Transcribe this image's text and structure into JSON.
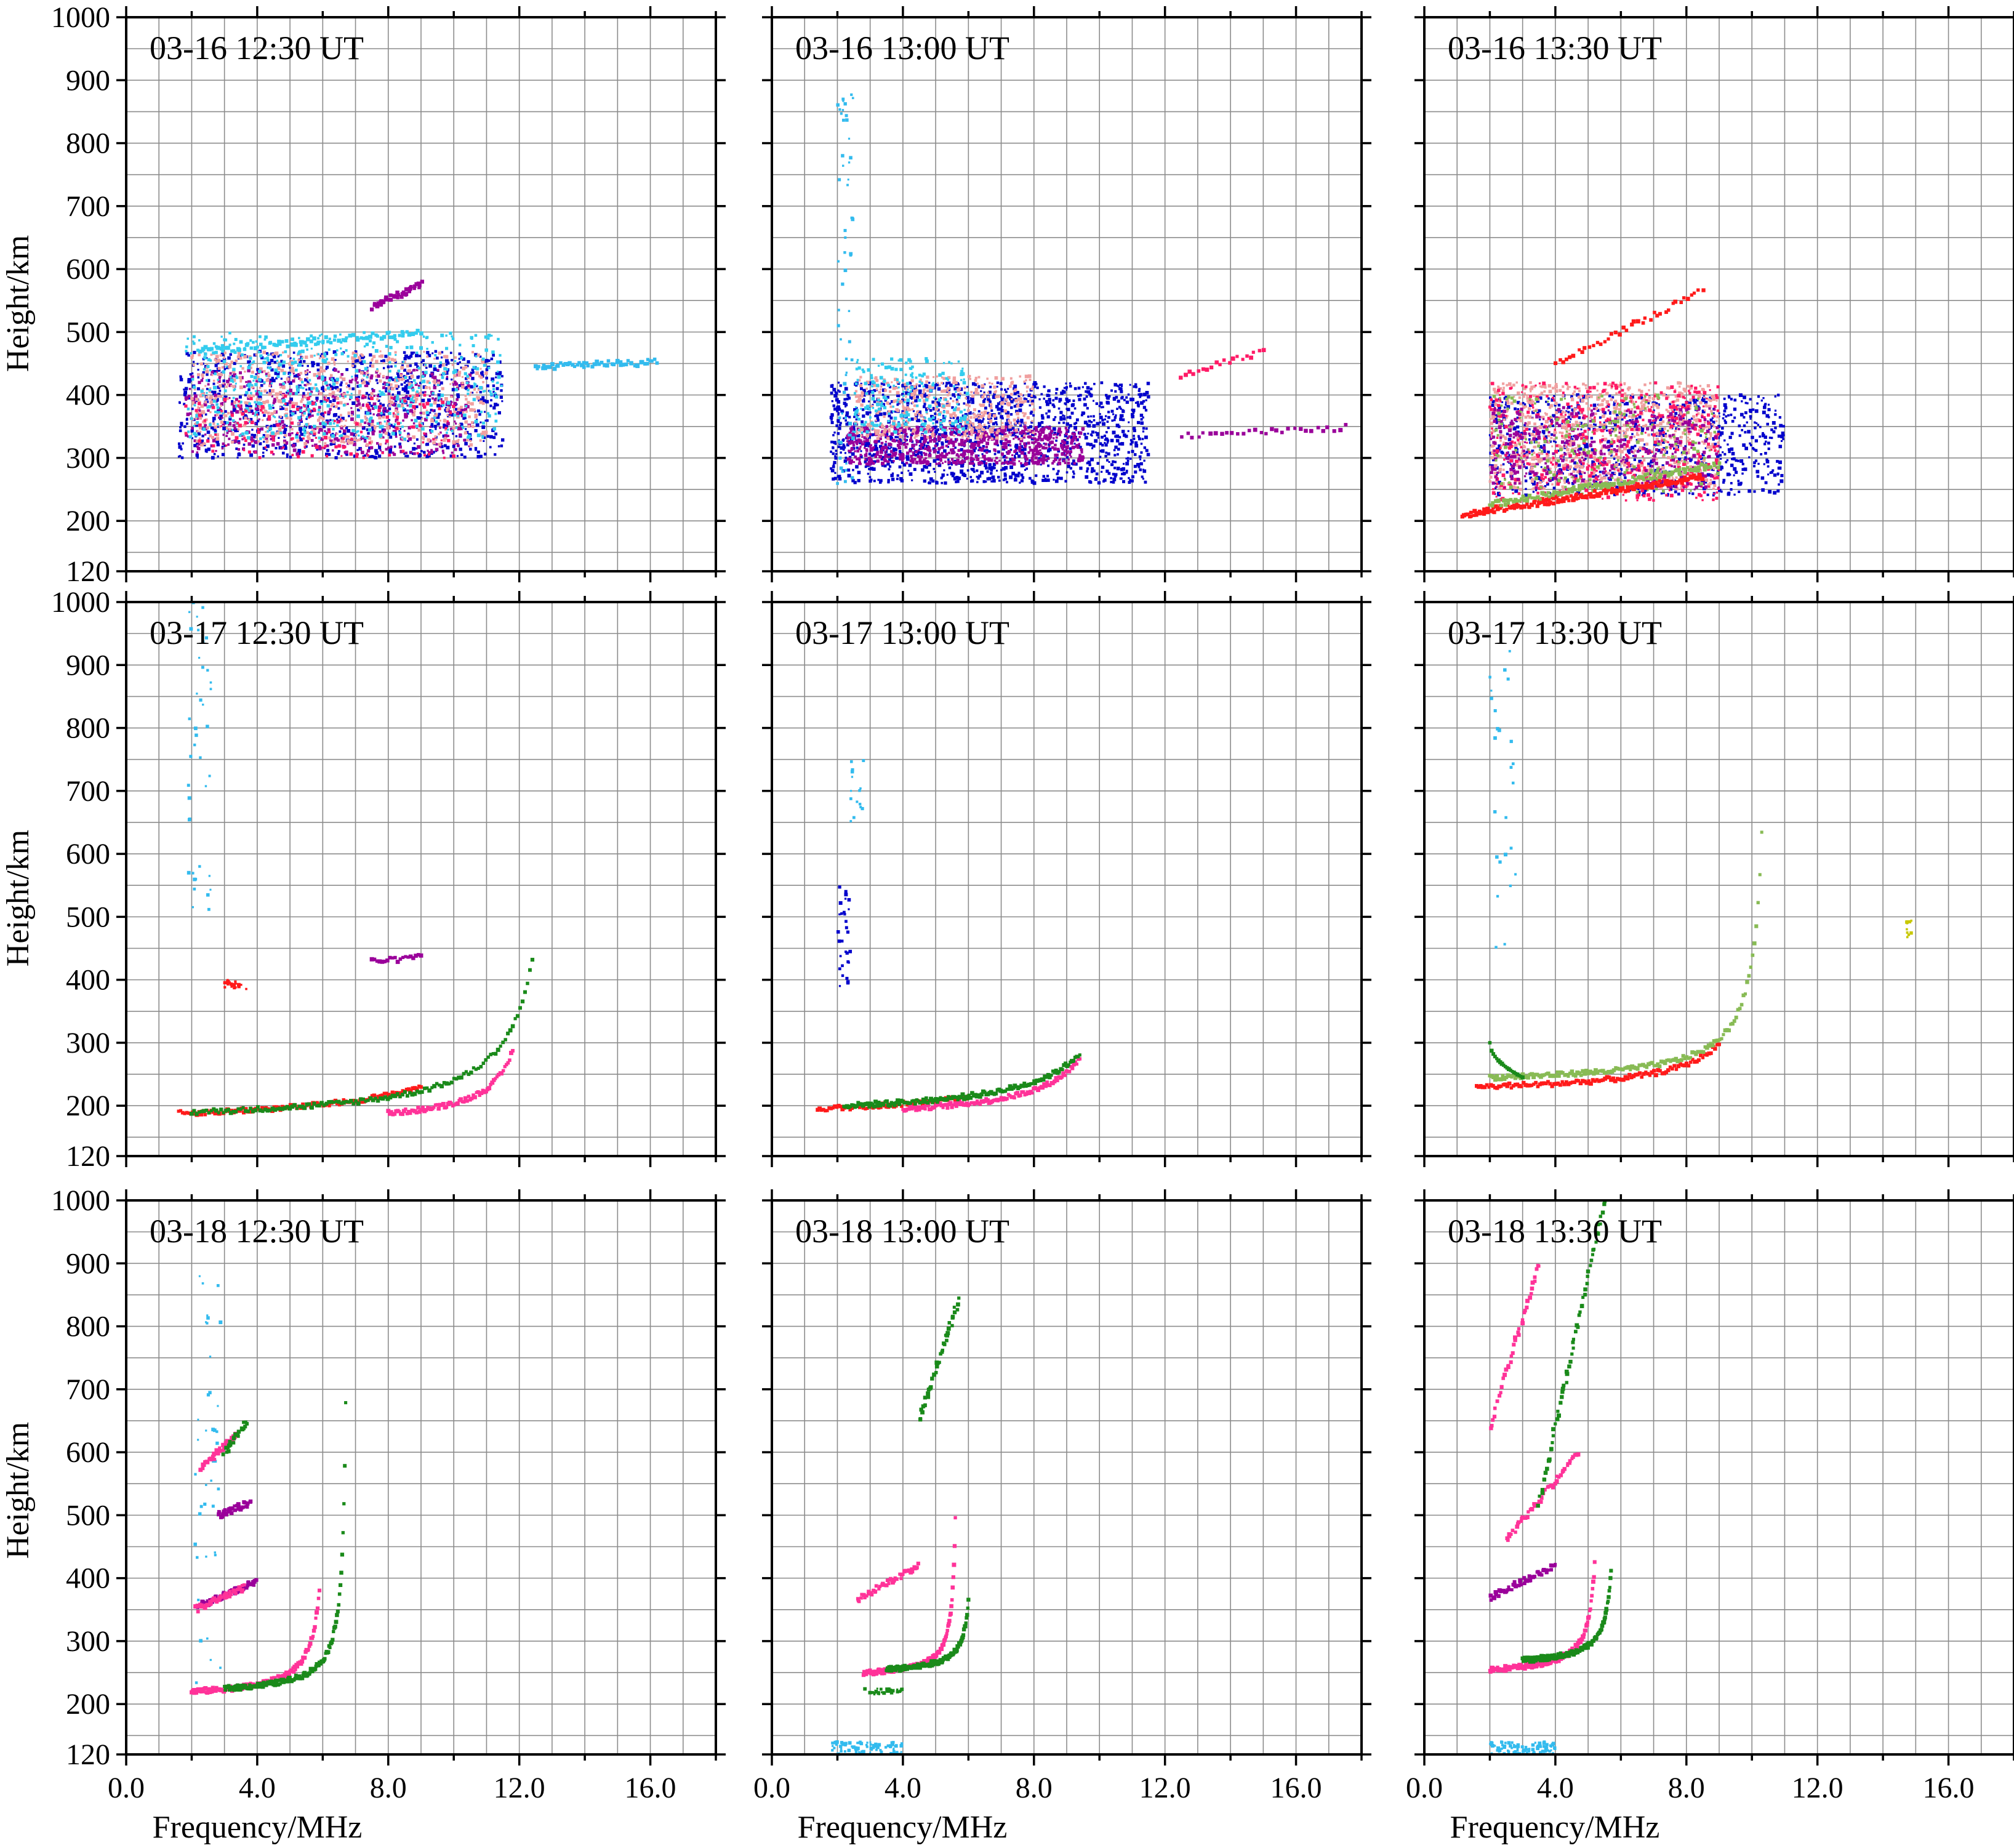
{
  "figure": {
    "xlabel": "Frequency/MHz",
    "ylabel": "Height/km"
  },
  "chart_data": [
    {
      "type": "scatter",
      "title": "03-16 12:30 UT",
      "xlabel": "Frequency/MHz",
      "ylabel": "Height/km",
      "xlim": [
        0,
        18
      ],
      "ylim": [
        120,
        1000
      ],
      "xticks": [
        "0.0",
        "4.0",
        "8.0",
        "12.0",
        "16.0"
      ],
      "yticks": [
        "120",
        "200",
        "300",
        "400",
        "500",
        "600",
        "700",
        "800",
        "900",
        "1000"
      ],
      "grid": true,
      "clusters": [
        {
          "color": "#0000cc",
          "x": [
            1.6,
            11.5
          ],
          "y": [
            300,
            470
          ],
          "count": 900
        },
        {
          "color": "#9a009a",
          "x": [
            1.8,
            10.5
          ],
          "y": [
            305,
            440
          ],
          "count": 500
        },
        {
          "color": "#f0a0a0",
          "x": [
            2.0,
            11.0
          ],
          "y": [
            320,
            470
          ],
          "count": 600
        },
        {
          "color": "#33ccee",
          "x": [
            1.8,
            11.5
          ],
          "y": [
            330,
            500
          ],
          "count": 500
        },
        {
          "color": "#ff1a66",
          "x": [
            1.8,
            10.0
          ],
          "y": [
            300,
            400
          ],
          "count": 150
        }
      ],
      "curves": [
        {
          "color": "#33bbee",
          "x": [
            12.5,
            16.2
          ],
          "y": [
            445,
            452
          ],
          "count": 60
        },
        {
          "color": "#9a009a",
          "x": [
            7.5,
            9.0
          ],
          "y": [
            540,
            575
          ],
          "count": 40
        },
        {
          "color": "#33ccee",
          "x": [
            2.2,
            9.0
          ],
          "y": [
            470,
            500
          ],
          "count": 80
        }
      ]
    },
    {
      "type": "scatter",
      "title": "03-16 13:00 UT",
      "xlabel": "Frequency/MHz",
      "ylabel": "Height/km",
      "xlim": [
        0,
        18
      ],
      "ylim": [
        120,
        1000
      ],
      "xticks": [
        "0.0",
        "4.0",
        "8.0",
        "12.0",
        "16.0"
      ],
      "yticks": [
        "120",
        "200",
        "300",
        "400",
        "500",
        "600",
        "700",
        "800",
        "900",
        "1000"
      ],
      "grid": true,
      "clusters": [
        {
          "color": "#0000cc",
          "x": [
            1.8,
            11.5
          ],
          "y": [
            260,
            420
          ],
          "count": 1400
        },
        {
          "color": "#9a009a",
          "x": [
            2.3,
            9.5
          ],
          "y": [
            290,
            350
          ],
          "count": 700
        },
        {
          "color": "#f0a0a0",
          "x": [
            2.5,
            8.0
          ],
          "y": [
            330,
            430
          ],
          "count": 400
        },
        {
          "color": "#33ccee",
          "x": [
            2.5,
            6.0
          ],
          "y": [
            340,
            460
          ],
          "count": 200
        },
        {
          "color": "#33bbee",
          "x": [
            2.0,
            2.5
          ],
          "y": [
            250,
            880
          ],
          "count": 60
        }
      ],
      "curves": [
        {
          "color": "#ff1a66",
          "x": [
            12.5,
            15.0
          ],
          "y": [
            430,
            470
          ],
          "count": 20
        },
        {
          "color": "#9a009a",
          "x": [
            12.5,
            17.5
          ],
          "y": [
            335,
            348
          ],
          "count": 30
        }
      ]
    },
    {
      "type": "scatter",
      "title": "03-16 13:30 UT",
      "xlabel": "Frequency/MHz",
      "ylabel": "Height/km",
      "xlim": [
        0,
        18
      ],
      "ylim": [
        120,
        1000
      ],
      "xticks": [
        "0.0",
        "4.0",
        "8.0",
        "12.0",
        "16.0"
      ],
      "yticks": [
        "120",
        "200",
        "300",
        "400",
        "500",
        "600",
        "700",
        "800",
        "900",
        "1000"
      ],
      "grid": true,
      "clusters": [
        {
          "color": "#0000cc",
          "x": [
            2.0,
            11.0
          ],
          "y": [
            240,
            400
          ],
          "count": 800
        },
        {
          "color": "#f0a0a0",
          "x": [
            2.0,
            9.0
          ],
          "y": [
            250,
            420
          ],
          "count": 900
        },
        {
          "color": "#ff1a66",
          "x": [
            2.0,
            9.0
          ],
          "y": [
            230,
            420
          ],
          "count": 500
        },
        {
          "color": "#9a009a",
          "x": [
            2.0,
            9.0
          ],
          "y": [
            250,
            380
          ],
          "count": 400
        },
        {
          "color": "#88bb55",
          "x": [
            2.0,
            9.0
          ],
          "y": [
            240,
            400
          ],
          "count": 200
        }
      ],
      "curves": [
        {
          "color": "#ff1a1a",
          "x": [
            1.2,
            8.5
          ],
          "y": [
            210,
            270
          ],
          "count": 200
        },
        {
          "color": "#88bb55",
          "x": [
            2.0,
            9.0
          ],
          "y": [
            225,
            290
          ],
          "count": 120
        },
        {
          "color": "#ff1a1a",
          "x": [
            4.0,
            8.5
          ],
          "y": [
            450,
            565
          ],
          "count": 40
        }
      ]
    },
    {
      "type": "scatter",
      "title": "03-17 12:30 UT",
      "xlabel": "Frequency/MHz",
      "ylabel": "Height/km",
      "xlim": [
        0,
        18
      ],
      "ylim": [
        120,
        1000
      ],
      "xticks": [
        "0.0",
        "4.0",
        "8.0",
        "12.0",
        "16.0"
      ],
      "yticks": [
        "120",
        "200",
        "300",
        "400",
        "500",
        "600",
        "700",
        "800",
        "900",
        "1000"
      ],
      "grid": true,
      "clusters": [
        {
          "color": "#33bbee",
          "x": [
            1.9,
            2.6
          ],
          "y": [
            500,
            1000
          ],
          "count": 40
        },
        {
          "color": "#ff1a1a",
          "x": [
            3.0,
            4.0
          ],
          "y": [
            385,
            400
          ],
          "count": 20
        }
      ],
      "curves": [
        {
          "kind": "trace",
          "color": "#ff1a1a",
          "f0": 1.6,
          "h0": 188,
          "fc": 12.6,
          "k": 60,
          "fend": 9.0,
          "count": 120
        },
        {
          "kind": "trace",
          "color": "#ff3399",
          "f0": 8.0,
          "h0": 188,
          "fc": 12.6,
          "k": 60,
          "fend": 11.8,
          "count": 80
        },
        {
          "kind": "trace",
          "color": "#1a8a1a",
          "f0": 2.0,
          "h0": 190,
          "fc": 13.3,
          "k": 60,
          "fend": 12.4,
          "count": 140
        },
        {
          "kind": "trace",
          "color": "#9a009a",
          "f0": 7.5,
          "h0": 430,
          "fc": 9.5,
          "k": 10,
          "fend": 9.0,
          "count": 20
        }
      ]
    },
    {
      "type": "scatter",
      "title": "03-17 13:00 UT",
      "xlabel": "Frequency/MHz",
      "ylabel": "Height/km",
      "xlim": [
        0,
        18
      ],
      "ylim": [
        120,
        1000
      ],
      "xticks": [
        "0.0",
        "4.0",
        "8.0",
        "12.0",
        "16.0"
      ],
      "yticks": [
        "120",
        "200",
        "300",
        "400",
        "500",
        "600",
        "700",
        "800",
        "900",
        "1000"
      ],
      "grid": true,
      "clusters": [
        {
          "color": "#0000cc",
          "x": [
            2.0,
            2.4
          ],
          "y": [
            380,
            550
          ],
          "count": 30
        },
        {
          "color": "#33bbee",
          "x": [
            2.4,
            2.8
          ],
          "y": [
            640,
            750
          ],
          "count": 15
        }
      ],
      "curves": [
        {
          "kind": "trace",
          "color": "#ff1a1a",
          "f0": 1.4,
          "h0": 195,
          "fc": 10.8,
          "k": 60,
          "fend": 6.0,
          "count": 80
        },
        {
          "kind": "trace",
          "color": "#ff3399",
          "f0": 4.0,
          "h0": 195,
          "fc": 10.8,
          "k": 60,
          "fend": 9.4,
          "count": 120
        },
        {
          "kind": "trace",
          "color": "#1a8a1a",
          "f0": 2.2,
          "h0": 200,
          "fc": 11.2,
          "k": 60,
          "fend": 9.4,
          "count": 150
        }
      ]
    },
    {
      "type": "scatter",
      "title": "03-17 13:30 UT",
      "xlabel": "Frequency/MHz",
      "ylabel": "Height/km",
      "xlim": [
        0,
        18
      ],
      "ylim": [
        120,
        1000
      ],
      "xticks": [
        "0.0",
        "4.0",
        "8.0",
        "12.0",
        "16.0"
      ],
      "yticks": [
        "120",
        "200",
        "300",
        "400",
        "500",
        "600",
        "700",
        "800",
        "900",
        "1000"
      ],
      "grid": true,
      "clusters": [
        {
          "color": "#33bbee",
          "x": [
            2.0,
            2.8
          ],
          "y": [
            450,
            950
          ],
          "count": 25
        },
        {
          "color": "#c8c800",
          "x": [
            14.7,
            14.9
          ],
          "y": [
            460,
            495
          ],
          "count": 10
        }
      ],
      "curves": [
        {
          "kind": "trace",
          "color": "#ff1a1a",
          "f0": 1.6,
          "h0": 230,
          "fc": 10.5,
          "k": 40,
          "fend": 9.0,
          "count": 120
        },
        {
          "kind": "trace",
          "color": "#88bb55",
          "f0": 2.0,
          "h0": 245,
          "fc": 10.6,
          "k": 40,
          "fend": 10.3,
          "count": 150
        },
        {
          "kind": "hook",
          "color": "#1a8a1a",
          "x": [
            2.0,
            3.0
          ],
          "y": [
            245,
            300
          ],
          "count": 20
        }
      ]
    },
    {
      "type": "scatter",
      "title": "03-18 12:30 UT",
      "xlabel": "Frequency/MHz",
      "ylabel": "Height/km",
      "xlim": [
        0,
        18
      ],
      "ylim": [
        120,
        1000
      ],
      "xticks": [
        "0.0",
        "4.0",
        "8.0",
        "12.0",
        "16.0"
      ],
      "yticks": [
        "120",
        "200",
        "300",
        "400",
        "500",
        "600",
        "700",
        "800",
        "900",
        "1000"
      ],
      "grid": true,
      "clusters": [
        {
          "color": "#33bbee",
          "x": [
            2.1,
            2.9
          ],
          "y": [
            200,
            880
          ],
          "count": 40
        }
      ],
      "curves": [
        {
          "kind": "trace",
          "color": "#ff3399",
          "f0": 2.0,
          "h0": 220,
          "fc": 6.2,
          "k": 35,
          "fend": 5.9,
          "count": 140
        },
        {
          "kind": "trace",
          "color": "#1a8a1a",
          "f0": 3.0,
          "h0": 225,
          "fc": 6.8,
          "k": 35,
          "fend": 6.7,
          "count": 140
        },
        {
          "kind": "line",
          "color": "#9a009a",
          "x": [
            2.2,
            4.0
          ],
          "y": [
            355,
            395
          ],
          "count": 70
        },
        {
          "kind": "line",
          "color": "#ff3399",
          "x": [
            2.1,
            3.6
          ],
          "y": [
            350,
            385
          ],
          "count": 50
        },
        {
          "kind": "line",
          "color": "#9a009a",
          "x": [
            2.8,
            3.8
          ],
          "y": [
            500,
            520
          ],
          "count": 40
        },
        {
          "kind": "line",
          "color": "#ff3399",
          "x": [
            2.3,
            3.4
          ],
          "y": [
            575,
            630
          ],
          "count": 40
        },
        {
          "kind": "line",
          "color": "#1a8a1a",
          "x": [
            3.0,
            3.7
          ],
          "y": [
            600,
            650
          ],
          "count": 25
        }
      ]
    },
    {
      "type": "scatter",
      "title": "03-18 13:00 UT",
      "xlabel": "Frequency/MHz",
      "ylabel": "Height/km",
      "xlim": [
        0,
        18
      ],
      "ylim": [
        120,
        1000
      ],
      "xticks": [
        "0.0",
        "4.0",
        "8.0",
        "12.0",
        "16.0"
      ],
      "yticks": [
        "120",
        "200",
        "300",
        "400",
        "500",
        "600",
        "700",
        "800",
        "900",
        "1000"
      ],
      "grid": true,
      "clusters": [
        {
          "color": "#33bbee",
          "x": [
            1.8,
            4.0
          ],
          "y": [
            120,
            140
          ],
          "count": 80
        },
        {
          "color": "#1a8a1a",
          "x": [
            2.8,
            4.0
          ],
          "y": [
            215,
            225
          ],
          "count": 30
        }
      ],
      "curves": [
        {
          "kind": "trace",
          "color": "#ff3399",
          "f0": 2.8,
          "h0": 250,
          "fc": 5.7,
          "k": 25,
          "fend": 5.6,
          "count": 140
        },
        {
          "kind": "trace",
          "color": "#1a8a1a",
          "f0": 3.5,
          "h0": 255,
          "fc": 6.2,
          "k": 25,
          "fend": 6.0,
          "count": 130
        },
        {
          "kind": "line",
          "color": "#ff3399",
          "x": [
            2.6,
            4.5
          ],
          "y": [
            365,
            420
          ],
          "count": 50
        },
        {
          "kind": "line",
          "color": "#1a8a1a",
          "x": [
            4.5,
            5.7
          ],
          "y": [
            650,
            840
          ],
          "count": 40
        }
      ]
    },
    {
      "type": "scatter",
      "title": "03-18 13:30 UT",
      "xlabel": "Frequency/MHz",
      "ylabel": "Height/km",
      "xlim": [
        0,
        18
      ],
      "ylim": [
        120,
        1000
      ],
      "xticks": [
        "0.0",
        "4.0",
        "8.0",
        "12.0",
        "16.0"
      ],
      "yticks": [
        "120",
        "200",
        "300",
        "400",
        "500",
        "600",
        "700",
        "800",
        "900",
        "1000"
      ],
      "grid": true,
      "clusters": [
        {
          "color": "#33bbee",
          "x": [
            2.0,
            4.0
          ],
          "y": [
            120,
            140
          ],
          "count": 90
        }
      ],
      "curves": [
        {
          "kind": "trace",
          "color": "#ff3399",
          "f0": 2.0,
          "h0": 255,
          "fc": 5.4,
          "k": 30,
          "fend": 5.2,
          "count": 150
        },
        {
          "kind": "trace",
          "color": "#1a8a1a",
          "f0": 3.0,
          "h0": 270,
          "fc": 5.9,
          "k": 30,
          "fend": 5.7,
          "count": 150
        },
        {
          "kind": "line",
          "color": "#9a009a",
          "x": [
            2.0,
            4.0
          ],
          "y": [
            370,
            420
          ],
          "count": 50
        },
        {
          "kind": "line",
          "color": "#ff3399",
          "x": [
            2.5,
            4.7
          ],
          "y": [
            460,
            600
          ],
          "count": 50
        },
        {
          "kind": "line",
          "color": "#1a8a1a",
          "x": [
            3.5,
            5.5
          ],
          "y": [
            520,
            1000
          ],
          "count": 60
        },
        {
          "kind": "line",
          "color": "#ff3399",
          "x": [
            2.0,
            3.5
          ],
          "y": [
            640,
            900
          ],
          "count": 40
        }
      ]
    }
  ]
}
